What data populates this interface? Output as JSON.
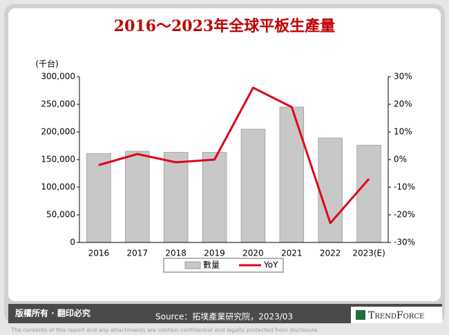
{
  "chart_data": {
    "type": "bar_line",
    "title": "2016～2023年全球平板生產量",
    "y_label": "(千台)",
    "categories": [
      "2016",
      "2017",
      "2018",
      "2019",
      "2020",
      "2021",
      "2022",
      "2023(E)"
    ],
    "series": [
      {
        "name": "數量",
        "color": "#c8c8c8",
        "type": "bar",
        "values": [
          161000,
          165000,
          163000,
          163000,
          205000,
          245000,
          189000,
          176000
        ]
      },
      {
        "name": "YoY",
        "color": "#e0001b",
        "type": "line",
        "axis": "y2",
        "values": [
          -2,
          2,
          -1,
          0,
          26,
          19,
          -23,
          -7
        ]
      }
    ],
    "ylim": [
      0,
      300000
    ],
    "yticks": [
      0,
      {
        "value": 50000,
        "label": "50,000"
      },
      {
        "value": 100000,
        "label": "100,000"
      },
      {
        "value": 150000,
        "label": "150,000"
      },
      {
        "value": 200000,
        "label": "200,000"
      },
      {
        "value": 250000,
        "label": "250,000"
      },
      {
        "value": 300000,
        "label": "300,000"
      }
    ],
    "y2lim": [
      -30,
      30
    ],
    "y2ticks": [
      {
        "value": -30,
        "label": "-30%"
      },
      {
        "value": -20,
        "label": "-20%"
      },
      {
        "value": -10,
        "label": "-10%"
      },
      {
        "value": 0,
        "label": "0%"
      },
      {
        "value": 10,
        "label": "10%"
      },
      {
        "value": 20,
        "label": "20%"
      },
      {
        "value": 30,
        "label": "30%"
      }
    ],
    "legend": "bottom"
  },
  "footer": {
    "rights": "版權所有 · 翻印必究",
    "source": "Source：拓墣產業研究院，2023/03",
    "brand": "TrendForce",
    "disclaimer": "The contents of this report and any attachments are contain confidential and legally protected from disclosure."
  }
}
